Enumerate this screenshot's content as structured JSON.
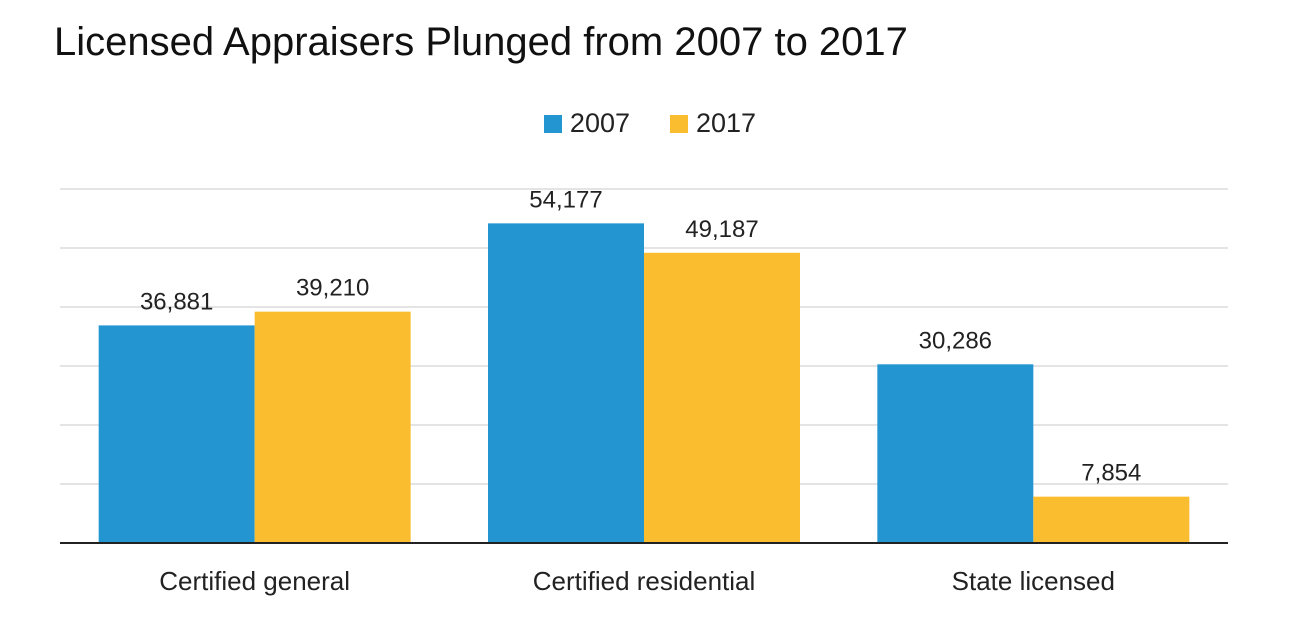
{
  "chart_data": {
    "type": "bar",
    "title": "Licensed Appraisers Plunged from 2007 to 2017",
    "categories": [
      "Certified general",
      "Certified residential",
      "State licensed"
    ],
    "series": [
      {
        "name": "2007",
        "color": "#2396d1",
        "values": [
          36881,
          54177,
          30286
        ],
        "labels": [
          "36,881",
          "54,177",
          "30,286"
        ]
      },
      {
        "name": "2017",
        "color": "#fbbd30",
        "values": [
          39210,
          49187,
          7854
        ],
        "labels": [
          "39,210",
          "49,187",
          "7,854"
        ]
      }
    ],
    "xlabel": "",
    "ylabel": "",
    "ylim": [
      0,
      60000
    ],
    "grid": true,
    "legend": "top-center"
  }
}
